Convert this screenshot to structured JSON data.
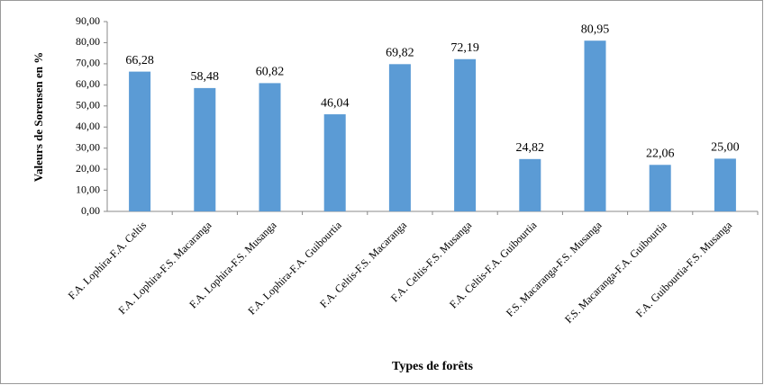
{
  "chart_data": {
    "type": "bar",
    "y_label": "Valeurs de Sorensen en %",
    "x_label": "Types de forêts",
    "categories": [
      "F.A. Lophira-F.A. Celtis",
      "F.A. Lophira-F.S. Macaranga",
      "F.A. Lophira-F.S. Musanga",
      "F.A. Lophira-F.A. Guibourtia",
      "F.A. Celtis-F.S. Macaranga",
      "F.A. Celtis-F.S. Musanga",
      "F.A. Celtis-F.A. Guibourtia",
      "F.S. Macaranga-F.S. Musanga",
      "F.S. Macaranga-F.A. Guibourtia",
      "F.A. Guibourtia-F.S. Musanga"
    ],
    "values": [
      66.28,
      58.48,
      60.82,
      46.04,
      69.82,
      72.19,
      24.82,
      80.95,
      22.06,
      25.0
    ],
    "value_labels": [
      "66,28",
      "58,48",
      "60,82",
      "46,04",
      "69,82",
      "72,19",
      "24,82",
      "80,95",
      "22,06",
      "25,00"
    ],
    "color": "#5b9bd5",
    "ylim": [
      0,
      90
    ],
    "yticks": [
      {
        "value": 0,
        "label": "0,00"
      },
      {
        "value": 10,
        "label": "10,00"
      },
      {
        "value": 20,
        "label": "20,00"
      },
      {
        "value": 30,
        "label": "30,00"
      },
      {
        "value": 40,
        "label": "40,00"
      },
      {
        "value": 50,
        "label": "50,00"
      },
      {
        "value": 60,
        "label": "60,00"
      },
      {
        "value": 70,
        "label": "70,00"
      },
      {
        "value": 80,
        "label": "80,00"
      },
      {
        "value": 90,
        "label": "90,00"
      }
    ],
    "grid": false
  }
}
